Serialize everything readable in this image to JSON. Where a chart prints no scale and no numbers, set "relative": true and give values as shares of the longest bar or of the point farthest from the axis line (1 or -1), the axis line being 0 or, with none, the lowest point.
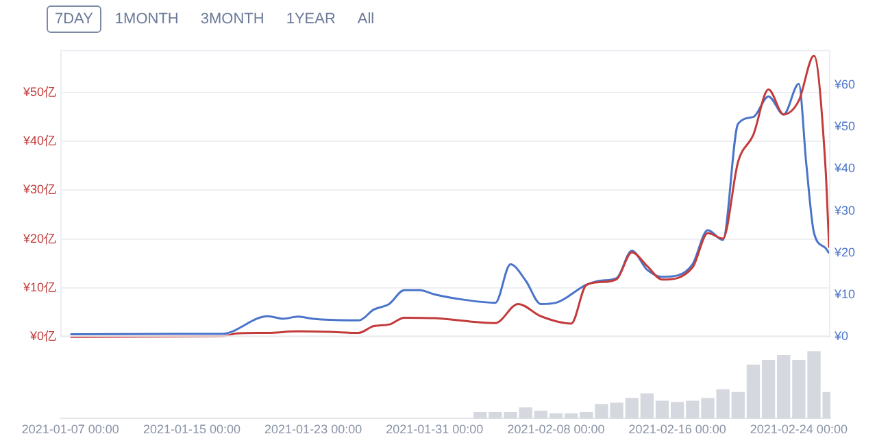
{
  "chart_data": [
    {
      "type": "line",
      "annotations": [
        "7DAY",
        "1MONTH",
        "3MONTH",
        "1YEAR",
        "All"
      ],
      "xlim": [
        "2021-01-06T08:00",
        "2021-02-26T02:00"
      ],
      "tick_labels": "y",
      "ylim": [
        0,
        58.7
      ],
      "yticks": [
        {
          "value": 0,
          "label": "¥0亿"
        },
        {
          "value": 10,
          "label": "¥10亿"
        },
        {
          "value": 20,
          "label": "¥20亿"
        },
        {
          "value": 30,
          "label": "¥30亿"
        },
        {
          "value": 40,
          "label": "¥40亿"
        },
        {
          "value": 50,
          "label": "¥50亿"
        }
      ],
      "y2lim": [
        0,
        68.4
      ],
      "y2ticks": [
        {
          "value": 0,
          "label": "¥0"
        },
        {
          "value": 10,
          "label": "¥10"
        },
        {
          "value": 20,
          "label": "¥20"
        },
        {
          "value": 30,
          "label": "¥30"
        },
        {
          "value": 40,
          "label": "¥40"
        },
        {
          "value": 50,
          "label": "¥50"
        },
        {
          "value": 60,
          "label": "¥60"
        }
      ],
      "grid": "y",
      "legend": false,
      "marker": "none",
      "line_style": "solid",
      "series": [
        {
          "axis": "y",
          "color": "#c33b3b",
          "x": [
            "2021-01-07",
            "2021-01-17",
            "2021-01-18",
            "2021-01-20",
            "2021-01-22",
            "2021-01-24",
            "2021-01-26",
            "2021-01-27",
            "2021-01-28",
            "2021-01-29",
            "2021-01-31",
            "2021-02-04",
            "2021-02-05T12:00",
            "2021-02-07",
            "2021-02-09",
            "2021-02-10",
            "2021-02-11",
            "2021-02-12",
            "2021-02-13",
            "2021-02-14",
            "2021-02-15",
            "2021-02-17",
            "2021-02-18",
            "2021-02-19",
            "2021-02-20",
            "2021-02-21",
            "2021-02-22",
            "2021-02-23",
            "2021-02-24",
            "2021-02-25",
            "2021-02-25T18:00",
            "2021-02-26"
          ],
          "values": [
            0,
            0.1,
            0.7,
            0.8,
            1.1,
            1.0,
            0.8,
            2.2,
            2.5,
            3.9,
            3.8,
            2.8,
            6.7,
            4.2,
            2.7,
            10.6,
            11.2,
            11.8,
            17.3,
            14.5,
            11.7,
            14.2,
            21.2,
            20.1,
            35.8,
            41.3,
            50.6,
            45.5,
            48.3,
            57.5,
            35.2,
            18.2
          ]
        },
        {
          "axis": "y2",
          "color": "#4a74c9",
          "x": [
            "2021-01-07",
            "2021-01-17",
            "2021-01-20",
            "2021-01-21",
            "2021-01-22",
            "2021-01-23",
            "2021-01-26",
            "2021-01-27",
            "2021-01-28",
            "2021-01-29",
            "2021-01-30",
            "2021-01-31",
            "2021-02-02",
            "2021-02-04",
            "2021-02-05",
            "2021-02-06",
            "2021-02-07",
            "2021-02-08",
            "2021-02-10",
            "2021-02-11",
            "2021-02-12",
            "2021-02-13",
            "2021-02-14",
            "2021-02-15",
            "2021-02-16",
            "2021-02-17",
            "2021-02-18",
            "2021-02-19",
            "2021-02-20",
            "2021-02-21",
            "2021-02-22",
            "2021-02-23",
            "2021-02-24",
            "2021-02-24T12:00",
            "2021-02-25",
            "2021-02-25T18:00",
            "2021-02-26"
          ],
          "values": [
            0.6,
            0.7,
            4.9,
            4.3,
            4.8,
            4.3,
            3.9,
            6.5,
            7.8,
            11.1,
            11.1,
            10.1,
            8.8,
            8.1,
            17.3,
            13.4,
            7.8,
            8.1,
            12.4,
            13.4,
            14.0,
            20.5,
            16.0,
            14.3,
            14.6,
            17.3,
            25.4,
            23.1,
            50.8,
            52.4,
            57.3,
            53.0,
            60.3,
            41.0,
            24.8,
            21.2,
            19.9
          ]
        }
      ]
    },
    {
      "type": "bar",
      "relative": true,
      "xlim": [
        "2021-01-06T08:00",
        "2021-02-26T02:00"
      ],
      "xticks": [
        {
          "value": "2021-01-07",
          "label": "2021-01-07 00:00"
        },
        {
          "value": "2021-01-15",
          "label": "2021-01-15 00:00"
        },
        {
          "value": "2021-01-23",
          "label": "2021-01-23 00:00"
        },
        {
          "value": "2021-01-31",
          "label": "2021-01-31 00:00"
        },
        {
          "value": "2021-02-08",
          "label": "2021-02-08 00:00"
        },
        {
          "value": "2021-02-16",
          "label": "2021-02-16 00:00"
        },
        {
          "value": "2021-02-24",
          "label": "2021-02-24 00:00"
        }
      ],
      "color": "#d6d8df",
      "x": [
        "2021-02-03",
        "2021-02-04",
        "2021-02-05",
        "2021-02-06",
        "2021-02-07",
        "2021-02-08",
        "2021-02-09",
        "2021-02-10",
        "2021-02-11",
        "2021-02-12",
        "2021-02-13",
        "2021-02-14",
        "2021-02-15",
        "2021-02-16",
        "2021-02-17",
        "2021-02-18",
        "2021-02-19",
        "2021-02-20",
        "2021-02-21",
        "2021-02-22",
        "2021-02-23",
        "2021-02-24",
        "2021-02-25",
        "2021-02-26"
      ],
      "values": [
        0.09,
        0.09,
        0.09,
        0.16,
        0.11,
        0.07,
        0.07,
        0.09,
        0.21,
        0.23,
        0.3,
        0.37,
        0.26,
        0.24,
        0.26,
        0.3,
        0.43,
        0.39,
        0.8,
        0.87,
        0.94,
        0.87,
        1,
        0.39
      ]
    }
  ]
}
